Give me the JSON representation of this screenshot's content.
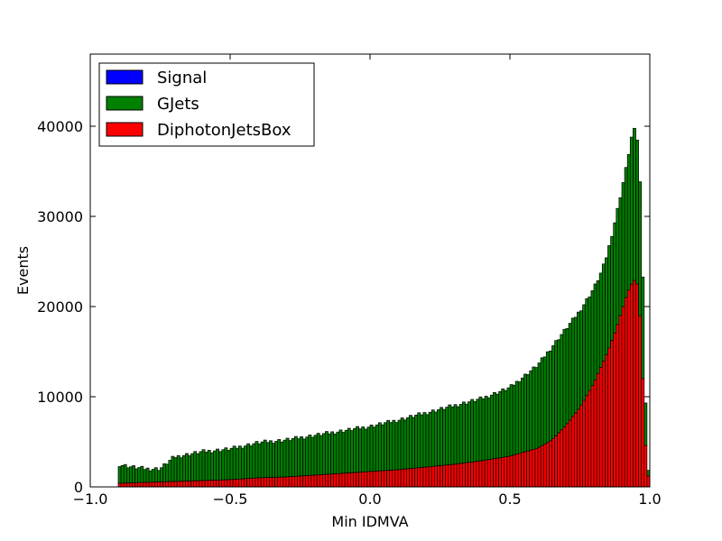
{
  "chart_data": {
    "type": "bar",
    "title": "",
    "xlabel": "Min IDMVA",
    "ylabel": "Events",
    "xlim": [
      -1.0,
      1.0
    ],
    "ylim": [
      0,
      48000
    ],
    "x_ticks": [
      -1.0,
      -0.5,
      0.0,
      0.5,
      1.0
    ],
    "x_tick_labels": [
      "−1.0",
      "−0.5",
      "0.0",
      "0.5",
      "1.0"
    ],
    "y_ticks": [
      0,
      10000,
      20000,
      30000,
      40000
    ],
    "y_tick_labels": [
      "0",
      "10000",
      "20000",
      "30000",
      "40000"
    ],
    "grid": false,
    "stacked": true,
    "bin_range": [
      -0.9,
      1.0
    ],
    "bin_width": 0.01,
    "legend_position": "upper-left",
    "legend": [
      {
        "label": "Signal",
        "color": "#0000ff"
      },
      {
        "label": "GJets",
        "color": "#008000"
      },
      {
        "label": "DiphotonJetsBox",
        "color": "#ff0000"
      }
    ],
    "series": [
      {
        "name": "DiphotonJetsBox",
        "color": "#ff0000",
        "total_key_points": {
          "x": [
            -0.9,
            -0.8,
            -0.7,
            -0.6,
            -0.5,
            -0.4,
            -0.3,
            -0.2,
            -0.1,
            0.0,
            0.1,
            0.2,
            0.3,
            0.4,
            0.5,
            0.6,
            0.65,
            0.7,
            0.75,
            0.8,
            0.85,
            0.88,
            0.9,
            0.92,
            0.94,
            0.95,
            0.96,
            0.97,
            0.98,
            0.99
          ],
          "y": [
            400,
            500,
            600,
            700,
            800,
            1000,
            1100,
            1300,
            1500,
            1700,
            1900,
            2200,
            2500,
            2900,
            3400,
            4300,
            5200,
            6800,
            8800,
            11500,
            15000,
            17500,
            19500,
            21500,
            22800,
            23000,
            22000,
            16000,
            8000,
            1200
          ]
        }
      },
      {
        "name": "GJets",
        "color": "#008000",
        "stacked_total_key_points": {
          "x": [
            -0.9,
            -0.85,
            -0.8,
            -0.75,
            -0.7,
            -0.6,
            -0.5,
            -0.4,
            -0.3,
            -0.2,
            -0.1,
            0.0,
            0.1,
            0.2,
            0.3,
            0.4,
            0.5,
            0.6,
            0.65,
            0.7,
            0.75,
            0.8,
            0.83,
            0.85,
            0.88,
            0.9,
            0.92,
            0.93,
            0.94,
            0.95,
            0.96,
            0.97,
            0.98,
            0.99
          ],
          "y": [
            2500,
            2200,
            2000,
            2000,
            3300,
            3900,
            4200,
            4900,
            5200,
            5700,
            6200,
            6700,
            7400,
            8200,
            9000,
            9800,
            11000,
            13500,
            15500,
            17500,
            19500,
            22000,
            24000,
            26000,
            30000,
            33000,
            36000,
            38000,
            39500,
            39600,
            37500,
            30000,
            17000,
            1700
          ]
        }
      },
      {
        "name": "Signal",
        "color": "#0000ff",
        "values": []
      }
    ]
  }
}
